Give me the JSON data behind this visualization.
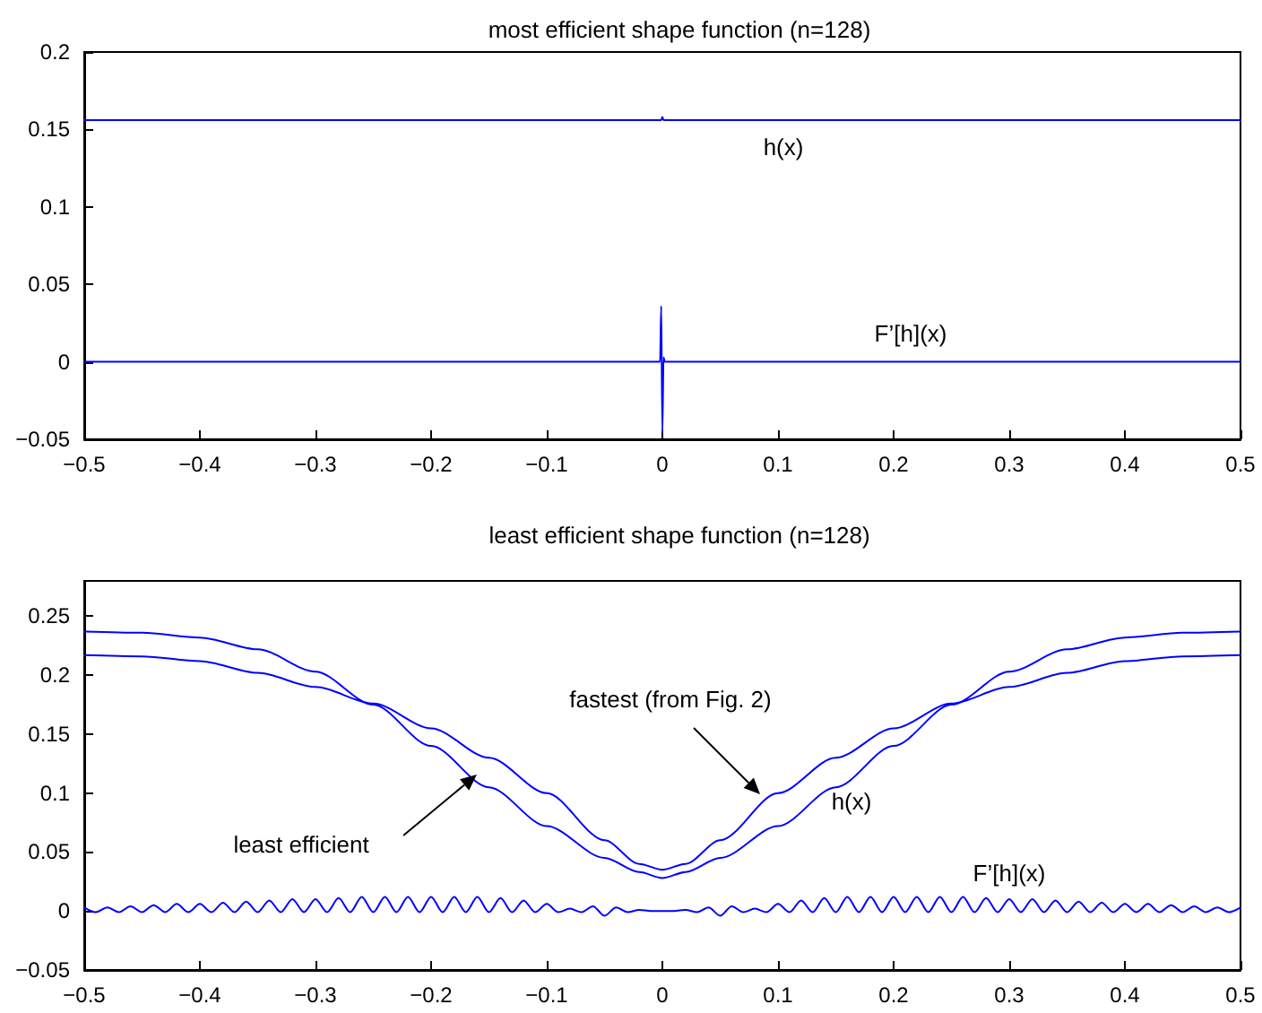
{
  "chart_data": [
    {
      "type": "line",
      "title": "most efficient shape function (n=128)",
      "series": [
        {
          "x": [
            -0.5,
            -0.001,
            0,
            0.001,
            0.5
          ],
          "values": [
            0.156,
            0.156,
            0.158,
            0.156,
            0.156
          ],
          "color": "#0000ff"
        },
        {
          "x": [
            -0.5,
            -0.002,
            -0.001,
            0,
            0.001,
            0.002,
            0.5
          ],
          "values": [
            0,
            0,
            0.036,
            -0.046,
            0.003,
            0,
            0
          ],
          "color": "#0000ff"
        }
      ],
      "xlim": [
        -0.5,
        0.5
      ],
      "xticks": [
        -0.5,
        -0.4,
        -0.3,
        -0.2,
        -0.1,
        0,
        0.1,
        0.2,
        0.3,
        0.4,
        0.5
      ],
      "ylim": [
        -0.05,
        0.2
      ],
      "yticks": [
        -0.05,
        0,
        0.05,
        0.1,
        0.15,
        0.2
      ],
      "annotations": [
        "h(x)",
        "F’[h](x)"
      ],
      "grid": false,
      "marker": "none",
      "line_style": "solid"
    },
    {
      "type": "line",
      "title": "least efficient shape function (n=128)",
      "series": [
        {
          "x": [
            -0.5,
            -0.45,
            -0.4,
            -0.35,
            -0.3,
            -0.25,
            -0.2,
            -0.15,
            -0.1,
            -0.05,
            -0.02,
            0,
            0.02,
            0.05,
            0.1,
            0.15,
            0.2,
            0.25,
            0.3,
            0.35,
            0.4,
            0.45,
            0.5
          ],
          "values": [
            0.217,
            0.216,
            0.212,
            0.202,
            0.19,
            0.176,
            0.155,
            0.13,
            0.1,
            0.06,
            0.04,
            0.035,
            0.04,
            0.06,
            0.1,
            0.13,
            0.155,
            0.176,
            0.19,
            0.202,
            0.212,
            0.216,
            0.217
          ],
          "color": "#0000ff"
        },
        {
          "x": [
            -0.5,
            -0.45,
            -0.4,
            -0.35,
            -0.3,
            -0.25,
            -0.2,
            -0.15,
            -0.1,
            -0.05,
            -0.02,
            0,
            0.02,
            0.05,
            0.1,
            0.15,
            0.2,
            0.25,
            0.3,
            0.35,
            0.4,
            0.45,
            0.5
          ],
          "values": [
            0.237,
            0.236,
            0.232,
            0.222,
            0.203,
            0.175,
            0.14,
            0.105,
            0.072,
            0.045,
            0.033,
            0.028,
            0.033,
            0.045,
            0.072,
            0.105,
            0.14,
            0.175,
            0.203,
            0.222,
            0.232,
            0.236,
            0.237
          ],
          "color": "#0000ff"
        },
        {
          "x": [
            -0.5,
            -0.49,
            -0.48,
            -0.47,
            -0.46,
            -0.45,
            -0.44,
            -0.43,
            -0.42,
            -0.41,
            -0.4,
            -0.39,
            -0.38,
            -0.37,
            -0.36,
            -0.35,
            -0.34,
            -0.33,
            -0.32,
            -0.31,
            -0.3,
            -0.29,
            -0.28,
            -0.27,
            -0.26,
            -0.25,
            -0.24,
            -0.23,
            -0.22,
            -0.21,
            -0.2,
            -0.19,
            -0.18,
            -0.17,
            -0.16,
            -0.15,
            -0.14,
            -0.13,
            -0.12,
            -0.11,
            -0.1,
            -0.09,
            -0.08,
            -0.07,
            -0.06,
            -0.05,
            -0.04,
            -0.03,
            -0.02,
            -0.01,
            0,
            0.01,
            0.02,
            0.03,
            0.04,
            0.05,
            0.06,
            0.07,
            0.08,
            0.09,
            0.1,
            0.11,
            0.12,
            0.13,
            0.14,
            0.15,
            0.16,
            0.17,
            0.18,
            0.19,
            0.2,
            0.21,
            0.22,
            0.23,
            0.24,
            0.25,
            0.26,
            0.27,
            0.28,
            0.29,
            0.3,
            0.31,
            0.32,
            0.33,
            0.34,
            0.35,
            0.36,
            0.37,
            0.38,
            0.39,
            0.4,
            0.41,
            0.42,
            0.43,
            0.44,
            0.45,
            0.46,
            0.47,
            0.48,
            0.49,
            0.5
          ],
          "values": [
            0.003,
            -0.001,
            0.003,
            -0.001,
            0.004,
            -0.001,
            0.005,
            -0.001,
            0.006,
            -0.001,
            0.006,
            -0.001,
            0.007,
            -0.001,
            0.008,
            -0.001,
            0.009,
            -0.001,
            0.01,
            -0.001,
            0.01,
            -0.001,
            0.011,
            -0.001,
            0.012,
            -0.001,
            0.012,
            -0.001,
            0.012,
            -0.001,
            0.012,
            -0.001,
            0.012,
            -0.001,
            0.012,
            -0.001,
            0.011,
            -0.001,
            0.009,
            -0.001,
            0.006,
            -0.001,
            0.002,
            -0.001,
            0.004,
            -0.004,
            0.003,
            -0.001,
            0.001,
            0,
            0,
            0,
            0.001,
            -0.001,
            0.003,
            -0.004,
            0.004,
            -0.001,
            0.002,
            -0.001,
            0.006,
            -0.001,
            0.009,
            -0.001,
            0.011,
            -0.001,
            0.012,
            -0.001,
            0.012,
            -0.001,
            0.012,
            -0.001,
            0.012,
            -0.001,
            0.012,
            -0.001,
            0.012,
            -0.001,
            0.011,
            -0.001,
            0.01,
            -0.001,
            0.01,
            -0.001,
            0.009,
            -0.001,
            0.008,
            -0.001,
            0.007,
            -0.001,
            0.006,
            -0.001,
            0.006,
            -0.001,
            0.005,
            -0.001,
            0.004,
            -0.001,
            0.003,
            -0.001,
            0.003
          ],
          "color": "#0000ff"
        }
      ],
      "xlim": [
        -0.5,
        0.5
      ],
      "xticks": [
        -0.5,
        -0.4,
        -0.3,
        -0.2,
        -0.1,
        0,
        0.1,
        0.2,
        0.3,
        0.4,
        0.5
      ],
      "ylim": [
        -0.05,
        0.28
      ],
      "yticks": [
        -0.05,
        0,
        0.05,
        0.1,
        0.15,
        0.2,
        0.25
      ],
      "annotations": [
        "fastest (from Fig. 2)",
        "least efficient",
        "h(x)",
        "F’[h](x)"
      ],
      "grid": false,
      "marker": "none",
      "line_style": "solid"
    }
  ]
}
